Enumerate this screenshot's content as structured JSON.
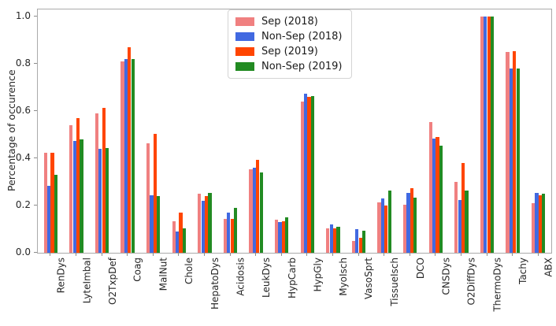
{
  "chart_data": {
    "type": "bar",
    "grouped": true,
    "title": "",
    "xlabel": "",
    "ylabel": "Percentage of occurence",
    "ylim": [
      0,
      1.03
    ],
    "yticks": [
      0.0,
      0.2,
      0.4,
      0.6,
      0.8,
      1.0
    ],
    "grid": false,
    "legend_position": "upper center",
    "categories": [
      "RenDys",
      "LyteImbal",
      "O2TxpDef",
      "Coag",
      "MalNut",
      "Chole",
      "HepatoDys",
      "Acidosis",
      "LeukDys",
      "HypCarb",
      "HypGly",
      "MyoIsch",
      "VasoSprt",
      "TissueIsch",
      "DCO",
      "CNSDys",
      "O2DiffDys",
      "ThermoDys",
      "Tachy",
      "ABX"
    ],
    "series": [
      {
        "name": "Sep (2018)",
        "color": "#f08080",
        "values": [
          0.425,
          0.54,
          0.59,
          0.81,
          0.465,
          0.135,
          0.25,
          0.145,
          0.355,
          0.14,
          0.64,
          0.105,
          0.05,
          0.215,
          0.205,
          0.555,
          0.3,
          1.0,
          0.85,
          0.21
        ]
      },
      {
        "name": "Non-Sep (2018)",
        "color": "#4169e1",
        "values": [
          0.285,
          0.475,
          0.44,
          0.82,
          0.245,
          0.09,
          0.22,
          0.17,
          0.36,
          0.13,
          0.675,
          0.12,
          0.1,
          0.23,
          0.255,
          0.485,
          0.225,
          1.0,
          0.78,
          0.255
        ]
      },
      {
        "name": "Sep (2019)",
        "color": "#ff4500",
        "values": [
          0.425,
          0.57,
          0.615,
          0.87,
          0.505,
          0.17,
          0.24,
          0.145,
          0.395,
          0.135,
          0.66,
          0.105,
          0.065,
          0.2,
          0.275,
          0.49,
          0.38,
          1.0,
          0.855,
          0.245
        ]
      },
      {
        "name": "Non-Sep (2019)",
        "color": "#228b22",
        "values": [
          0.33,
          0.48,
          0.445,
          0.82,
          0.24,
          0.105,
          0.255,
          0.19,
          0.34,
          0.15,
          0.665,
          0.11,
          0.095,
          0.265,
          0.235,
          0.455,
          0.265,
          1.0,
          0.78,
          0.25
        ]
      }
    ]
  }
}
